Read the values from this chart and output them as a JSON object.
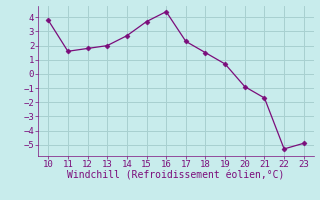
{
  "x": [
    10,
    11,
    12,
    13,
    14,
    15,
    16,
    17,
    18,
    19,
    20,
    21,
    22,
    23
  ],
  "y": [
    3.8,
    1.6,
    1.8,
    2.0,
    2.7,
    3.7,
    4.4,
    2.3,
    1.5,
    0.7,
    -0.9,
    -1.7,
    -5.3,
    -4.9
  ],
  "line_color": "#7b0d7b",
  "marker_color": "#7b0d7b",
  "bg_color": "#c8ecec",
  "plot_bg_color": "#c8ecec",
  "grid_color": "#a8d0d0",
  "xlabel": "Windchill (Refroidissement éolien,°C)",
  "xlabel_color": "#7b0d7b",
  "tick_color": "#7b0d7b",
  "spine_color": "#7b0d7b",
  "xlim": [
    9.5,
    23.5
  ],
  "ylim": [
    -5.8,
    4.8
  ],
  "yticks": [
    -5,
    -4,
    -3,
    -2,
    -1,
    0,
    1,
    2,
    3,
    4
  ],
  "xticks": [
    10,
    11,
    12,
    13,
    14,
    15,
    16,
    17,
    18,
    19,
    20,
    21,
    22,
    23
  ],
  "tick_fontsize": 6.5,
  "xlabel_fontsize": 7.0
}
